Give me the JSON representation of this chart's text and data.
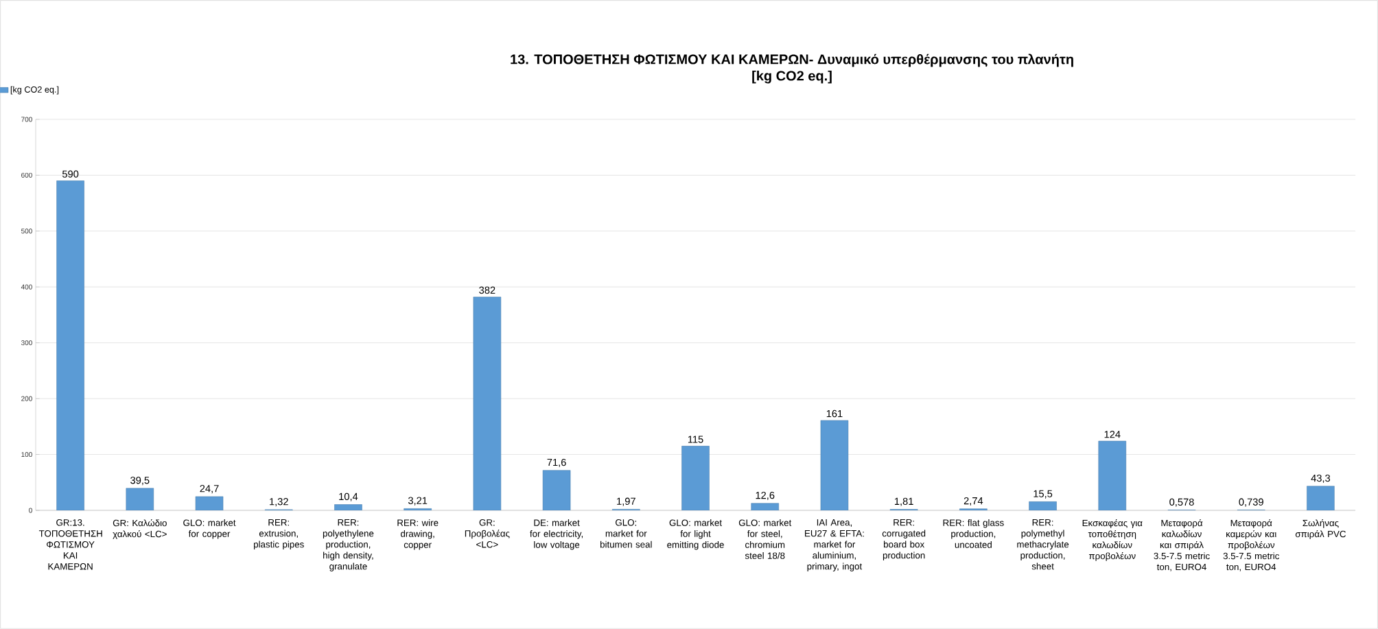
{
  "chart_data": {
    "type": "bar",
    "title": "13. ΤΟΠΟΘΕΤΗΣΗ ΦΩΤΙΣΜΟΥ ΚΑΙ ΚΑΜΕΡΩΝ- Δυναμικό υπερθέρμανσης του πλανήτη",
    "subtitle": "[kg CO2 eq.]",
    "categories": [
      "GR:13. ΤΟΠΟΘΕΤΗΣΗ ΦΩΤΙΣΜΟΥ ΚΑΙ ΚΑΜΕΡΩΝ",
      "GR: Καλώδιο χαλκού <LC>",
      "GLO: market for copper",
      "RER: extrusion, plastic pipes",
      "RER: polyethylene production, high density, granulate",
      "RER: wire drawing, copper",
      "GR: Προβολέας <LC>",
      "DE: market for electricity, low voltage",
      "GLO: market for bitumen seal",
      "GLO: market for light emitting diode",
      "GLO: market for steel, chromium steel 18/8",
      "IAI Area, EU27 & EFTA: market for aluminium, primary, ingot",
      "RER: corrugated board box production",
      "RER: flat glass production, uncoated",
      "RER: polymethyl methacrylate production, sheet",
      "Εκσκαφέας για τοποθέτηση καλωδίων προβολέων",
      "Μεταφορά καλωδίων και σπιράλ 3.5-7.5 metric ton, EURO4",
      "Μεταφορά καμερών και προβολέων 3.5-7.5 metric ton, EURO4",
      "Σωλήνας σπιράλ PVC"
    ],
    "series": [
      {
        "name": "[kg CO2 eq.]",
        "color": "#5b9bd5",
        "values": [
          590,
          39.5,
          24.7,
          1.32,
          10.4,
          3.21,
          382,
          71.6,
          1.97,
          115,
          12.6,
          161,
          1.81,
          2.74,
          15.5,
          124,
          0.578,
          0.739,
          43.3
        ],
        "value_labels": [
          "590",
          "39,5",
          "24,7",
          "1,32",
          "10,4",
          "3,21",
          "382",
          "71,6",
          "1,97",
          "115",
          "12,6",
          "161",
          "1,81",
          "2,74",
          "15,5",
          "124",
          "0,578",
          "0,739",
          "43,3"
        ]
      }
    ],
    "ylim": [
      0,
      700
    ],
    "yticks": [
      0,
      100,
      200,
      300,
      400,
      500,
      600,
      700
    ],
    "grid": "y",
    "legend": "top left"
  }
}
